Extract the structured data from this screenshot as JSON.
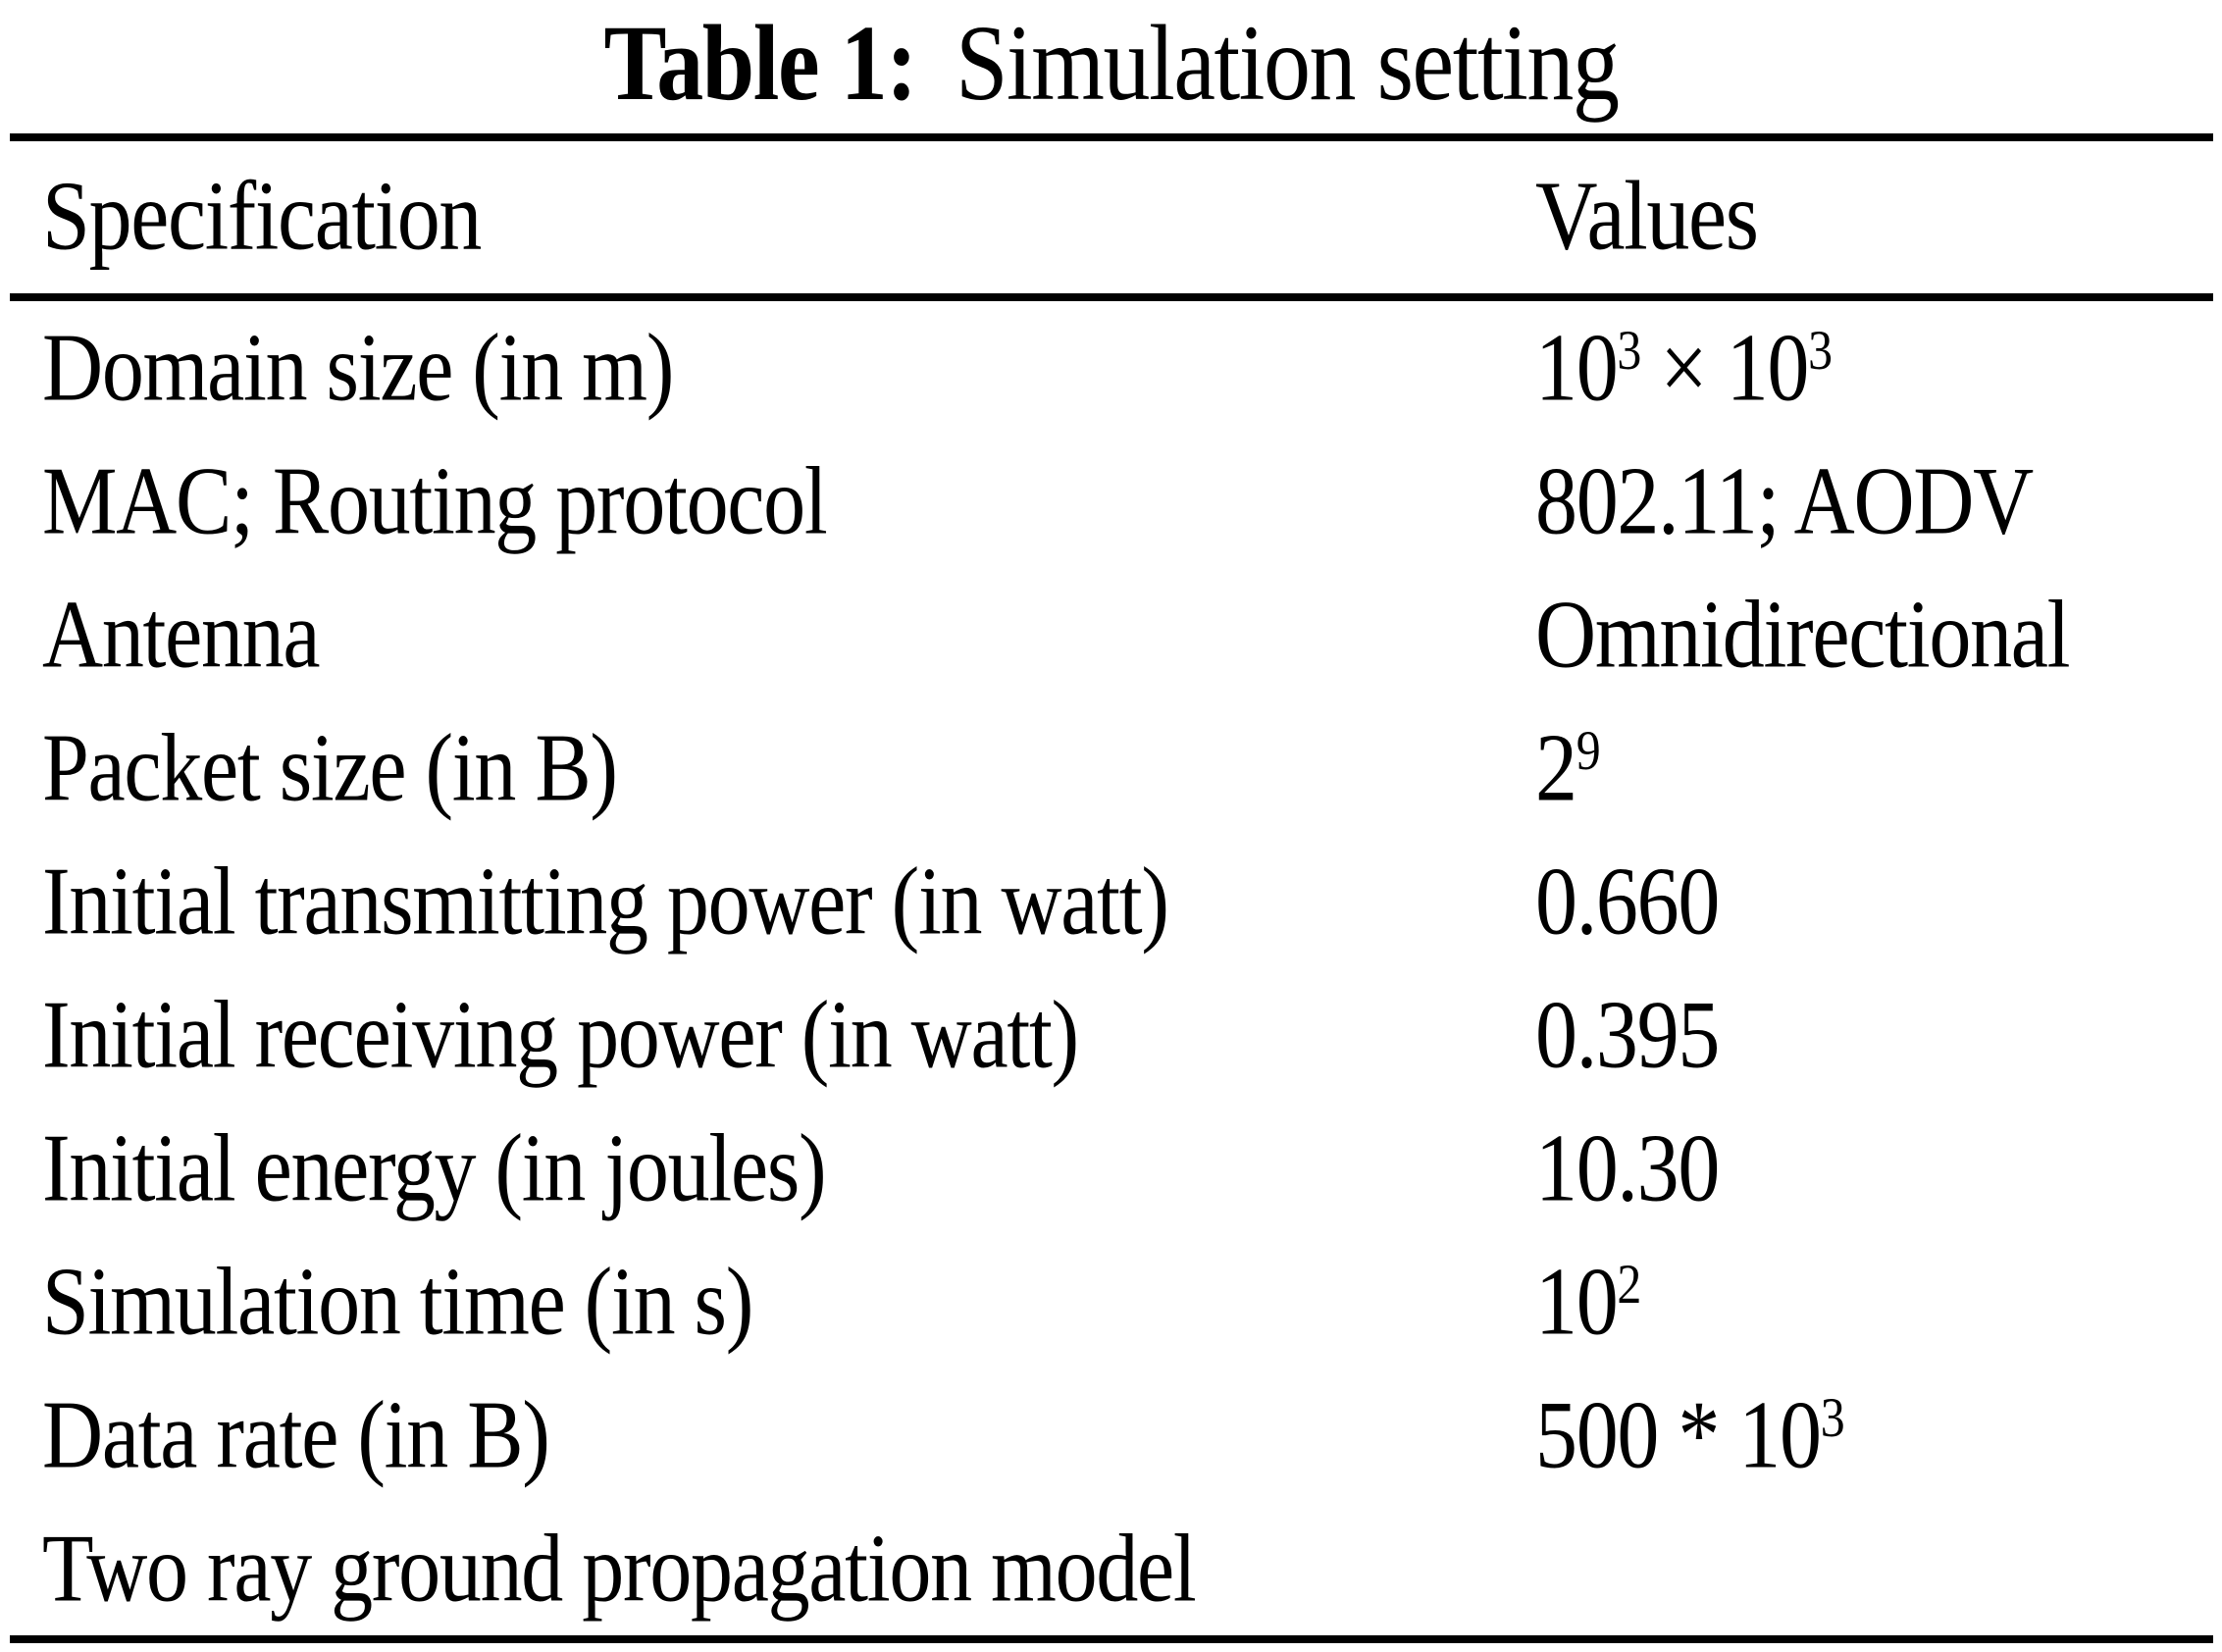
{
  "caption": {
    "label": "Table 1:",
    "text": "Simulation setting"
  },
  "table": {
    "columns": [
      "Specification",
      "Values"
    ],
    "rows": [
      {
        "spec": "Domain size (in m)",
        "value": [
          {
            "t": "10"
          },
          {
            "t": "3",
            "sup": true
          },
          {
            "t": " × "
          },
          {
            "t": "10"
          },
          {
            "t": "3",
            "sup": true
          }
        ]
      },
      {
        "spec": "MAC; Routing protocol",
        "value": [
          {
            "t": "802.11; AODV"
          }
        ]
      },
      {
        "spec": "Antenna",
        "value": [
          {
            "t": "Omnidirectional"
          }
        ]
      },
      {
        "spec": "Packet size (in B)",
        "value": [
          {
            "t": "2"
          },
          {
            "t": "9",
            "sup": true
          }
        ]
      },
      {
        "spec": "Initial transmitting power (in watt)",
        "value": [
          {
            "t": "0.660"
          }
        ]
      },
      {
        "spec": "Initial receiving power (in watt)",
        "value": [
          {
            "t": "0.395"
          }
        ]
      },
      {
        "spec": "Initial energy (in joules)",
        "value": [
          {
            "t": "10.30"
          }
        ]
      },
      {
        "spec": "Simulation time (in s)",
        "value": [
          {
            "t": "10"
          },
          {
            "t": "2",
            "sup": true
          }
        ]
      },
      {
        "spec": "Data rate (in B)",
        "value": [
          {
            "t": "500 * 10"
          },
          {
            "t": "3",
            "sup": true
          }
        ]
      },
      {
        "spec": "Two ray ground propagation model",
        "value": [],
        "span": true
      }
    ]
  },
  "colors": {
    "text": "#000000",
    "background": "#ffffff",
    "rule": "#000000"
  }
}
